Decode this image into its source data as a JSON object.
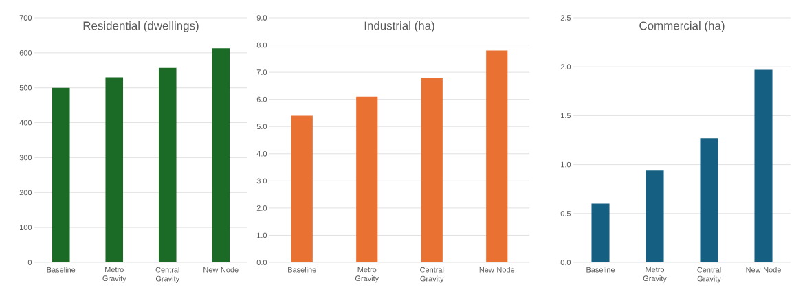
{
  "chart_data": [
    {
      "type": "bar",
      "title": "Residential (dwellings)",
      "categories": [
        "Baseline",
        "Metro Gravity",
        "Central Gravity",
        "New Node"
      ],
      "values": [
        500,
        530,
        557,
        613
      ],
      "color": "#1b6b26",
      "ylim": [
        0,
        700
      ],
      "yticks": [
        0,
        100,
        200,
        300,
        400,
        500,
        600,
        700
      ],
      "grid": "y"
    },
    {
      "type": "bar",
      "title": "Industrial (ha)",
      "categories": [
        "Baseline",
        "Metro Gravity",
        "Central Gravity",
        "New Node"
      ],
      "values": [
        5.4,
        6.1,
        6.8,
        7.8
      ],
      "color": "#e97132",
      "ylim": [
        0,
        9
      ],
      "yticks": [
        {
          "value": 0,
          "label": "0.0"
        },
        {
          "value": 1,
          "label": "1.0"
        },
        {
          "value": 2,
          "label": "2.0"
        },
        {
          "value": 3,
          "label": "3.0"
        },
        {
          "value": 4,
          "label": "4.0"
        },
        {
          "value": 5,
          "label": "5.0"
        },
        {
          "value": 6,
          "label": "6.0"
        },
        {
          "value": 7,
          "label": "7.0"
        },
        {
          "value": 8,
          "label": "8.0"
        },
        {
          "value": 9,
          "label": "9.0"
        }
      ],
      "grid": "y"
    },
    {
      "type": "bar",
      "title": "Commercial (ha)",
      "categories": [
        "Baseline",
        "Metro Gravity",
        "Central Gravity",
        "New Node"
      ],
      "values": [
        0.6,
        0.94,
        1.27,
        1.97
      ],
      "color": "#156082",
      "ylim": [
        0,
        2.5
      ],
      "yticks": [
        {
          "value": 0,
          "label": "0.0"
        },
        0.5,
        {
          "value": 1,
          "label": "1.0"
        },
        1.5,
        {
          "value": 2,
          "label": "2.0"
        },
        2.5
      ],
      "grid": "y"
    }
  ]
}
